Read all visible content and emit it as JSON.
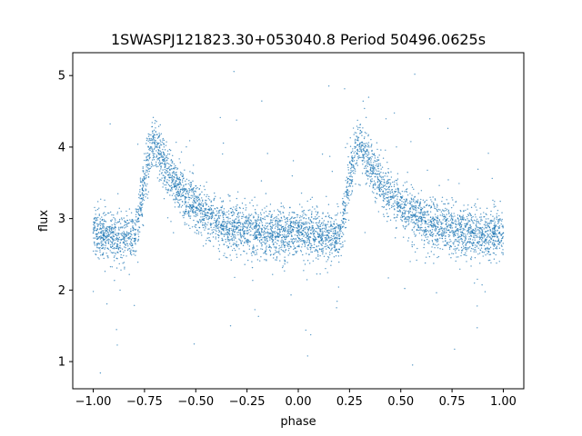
{
  "chart_data": {
    "type": "scatter",
    "title": "1SWASPJ121823.30+053040.8 Period 50496.0625s",
    "xlabel": "phase",
    "ylabel": "flux",
    "xlim": [
      -1.1,
      1.1
    ],
    "ylim": [
      0.62,
      5.32
    ],
    "xticks": [
      -1.0,
      -0.75,
      -0.5,
      -0.25,
      0.0,
      0.25,
      0.5,
      0.75,
      1.0
    ],
    "xtick_labels": [
      "−1.00",
      "−0.75",
      "−0.50",
      "−0.25",
      "0.00",
      "0.25",
      "0.50",
      "0.75",
      "1.00"
    ],
    "yticks": [
      1,
      2,
      3,
      4,
      5
    ],
    "ytick_labels": [
      "1",
      "2",
      "3",
      "4",
      "5"
    ],
    "grid": false,
    "legend": "none",
    "point_color": "#1f77b4",
    "series": [
      {
        "x": [
          -1.0,
          -0.95,
          -0.9,
          -0.85,
          -0.8,
          -0.78,
          -0.76,
          -0.74,
          -0.72,
          -0.7,
          -0.68,
          -0.65,
          -0.6,
          -0.55,
          -0.5,
          -0.45,
          -0.4,
          -0.35,
          -0.3,
          -0.25,
          -0.2,
          -0.15,
          -0.1,
          -0.05,
          0.0,
          0.05,
          0.1,
          0.15,
          0.2,
          0.22,
          0.24,
          0.26,
          0.28,
          0.3,
          0.32,
          0.35,
          0.4,
          0.45,
          0.5,
          0.55,
          0.6,
          0.65,
          0.7,
          0.75,
          0.8,
          0.85,
          0.9,
          0.95,
          1.0
        ],
        "y": [
          2.8,
          2.78,
          2.75,
          2.73,
          2.72,
          3.0,
          3.4,
          3.75,
          4.0,
          4.05,
          3.95,
          3.75,
          3.5,
          3.3,
          3.15,
          3.05,
          2.97,
          2.9,
          2.86,
          2.83,
          2.81,
          2.8,
          2.79,
          2.79,
          2.8,
          2.78,
          2.75,
          2.73,
          2.72,
          3.0,
          3.4,
          3.75,
          4.0,
          4.05,
          3.95,
          3.75,
          3.5,
          3.3,
          3.15,
          3.05,
          2.97,
          2.9,
          2.86,
          2.83,
          2.81,
          2.8,
          2.79,
          2.79,
          2.8
        ]
      }
    ]
  }
}
